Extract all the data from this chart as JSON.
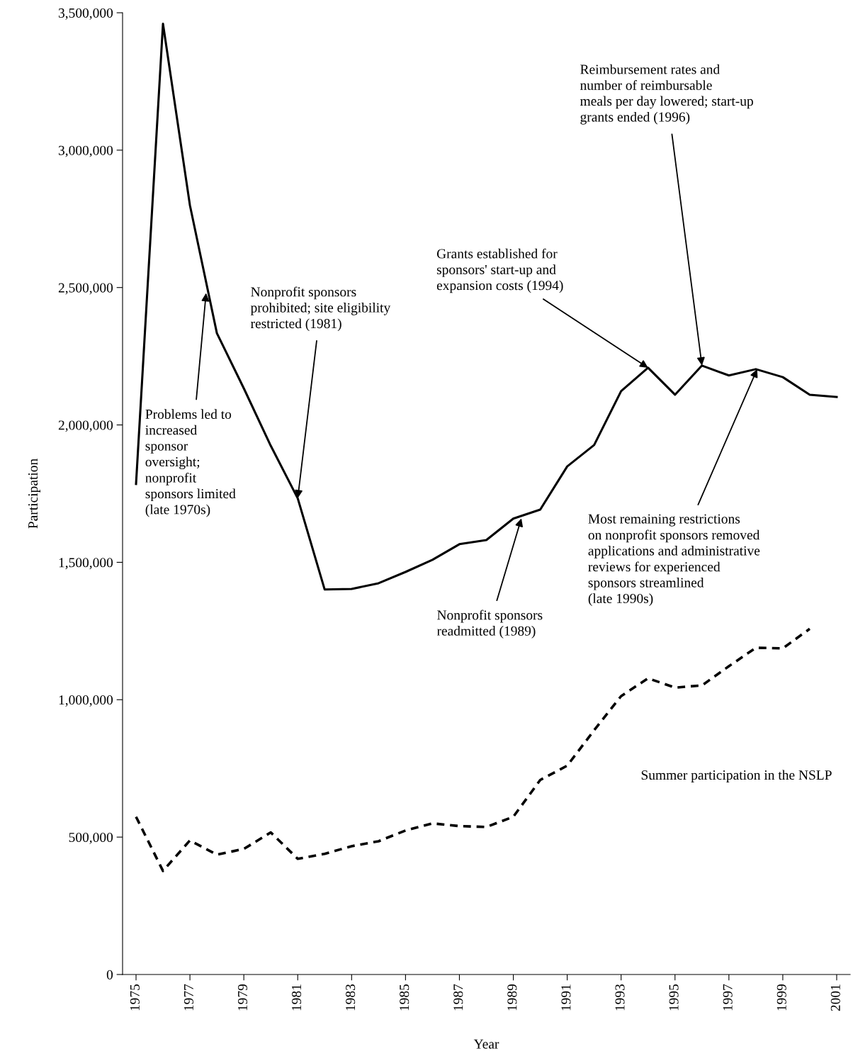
{
  "chart_data": {
    "type": "line",
    "xlabel": "Year",
    "ylabel": "Participation",
    "x": [
      1975,
      1976,
      1977,
      1978,
      1979,
      1980,
      1981,
      1982,
      1983,
      1984,
      1985,
      1986,
      1987,
      1988,
      1989,
      1990,
      1991,
      1992,
      1993,
      1994,
      1995,
      1996,
      1997,
      1998,
      1999,
      2000,
      2001
    ],
    "series": [
      {
        "color": "#000000",
        "line_style": "solid",
        "values": [
          1785000,
          3460000,
          2799000,
          2334000,
          2133000,
          1924000,
          1733000,
          1401000,
          1403000,
          1424000,
          1465000,
          1509000,
          1566000,
          1581000,
          1659000,
          1692000,
          1849000,
          1927000,
          2123000,
          2208000,
          2110000,
          2216000,
          2180000,
          2203000,
          2174000,
          2110000,
          2102000
        ]
      },
      {
        "name": "Summer participation in the NSLP",
        "color": "#000000",
        "line_style": "dashed",
        "values": [
          574000,
          377000,
          488000,
          436000,
          457000,
          517000,
          421000,
          439000,
          467000,
          485000,
          524000,
          550000,
          540000,
          537000,
          574000,
          708000,
          760000,
          889000,
          1013000,
          1078000,
          1044000,
          1052000,
          1122000,
          1189000,
          1187000,
          1258000,
          null
        ]
      }
    ],
    "xlim": [
      1974.5,
      2001.5
    ],
    "xticks": [
      1975,
      1977,
      1979,
      1981,
      1983,
      1985,
      1987,
      1989,
      1991,
      1993,
      1995,
      1997,
      1999,
      2001
    ],
    "ylim": [
      0,
      3500000
    ],
    "yticks": [
      {
        "value": 0,
        "label": "0"
      },
      {
        "value": 500000,
        "label": "500,000"
      },
      {
        "value": 1000000,
        "label": "1,000,000"
      },
      {
        "value": 1500000,
        "label": "1,500,000"
      },
      {
        "value": 2000000,
        "label": "2,000,000"
      },
      {
        "value": 2500000,
        "label": "2,500,000"
      },
      {
        "value": 3000000,
        "label": "3,000,000"
      },
      {
        "value": 3500000,
        "label": "3,500,000"
      }
    ],
    "grid": false,
    "legend": false,
    "marker": "none",
    "annotations": [
      {
        "text": "Problems led to\nincreased\nsponsor\noversight;\nnonprofit\nsponsors limited\n(late 1970s)",
        "x": 1977.6,
        "y": 2480000
      },
      {
        "text": "Nonprofit sponsors\nprohibited; site eligibility\nrestricted (1981)",
        "x": 1981,
        "y": 1733000
      },
      {
        "text": "Nonprofit sponsors\nreadmitted (1989)",
        "x": 1989.3,
        "y": 1660000
      },
      {
        "text": "Grants established for\nsponsors' start-up and\nexpansion costs (1994)",
        "x": 1994,
        "y": 2208000
      },
      {
        "text": "Reimbursement rates and\nnumber of reimbursable\nmeals per day lowered; start-up\ngrants ended (1996)",
        "x": 1996,
        "y": 2216000
      },
      {
        "text": "Most remaining restrictions\non nonprofit sponsors removed\napplications and administrative\nreviews for experienced\nsponsors streamlined\n(late 1990s)",
        "x": 1998.05,
        "y": 2203000
      }
    ]
  }
}
